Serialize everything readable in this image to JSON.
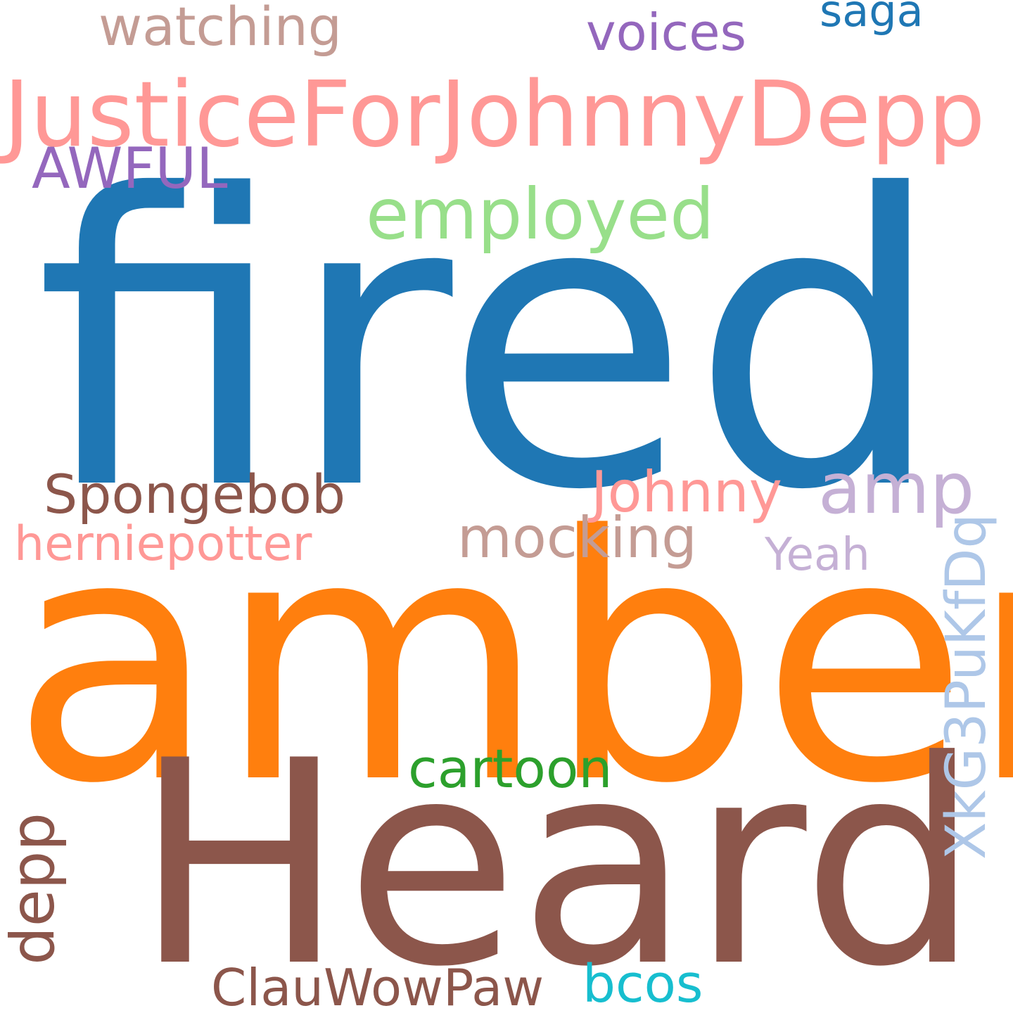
{
  "words": [
    {
      "text": "fired",
      "color": "#1f77b4"
    },
    {
      "text": "amber",
      "color": "#ff7f0e"
    },
    {
      "text": "Heard",
      "color": "#8c564b"
    },
    {
      "text": "JusticeForJohnnyDepp",
      "color": "#ff9896"
    },
    {
      "text": "employed",
      "color": "#98df8a"
    },
    {
      "text": "AWFUL",
      "color": "#9467bd"
    },
    {
      "text": "watching",
      "color": "#c49c94"
    },
    {
      "text": "voices",
      "color": "#9467bd"
    },
    {
      "text": "saga",
      "color": "#1f77b4"
    },
    {
      "text": "Spongebob",
      "color": "#8c564b"
    },
    {
      "text": "Johnny",
      "color": "#ff9896"
    },
    {
      "text": "amp",
      "color": "#c5b0d5"
    },
    {
      "text": "herniepotter",
      "color": "#ff9896"
    },
    {
      "text": "mocking",
      "color": "#c49c94"
    },
    {
      "text": "Yeah",
      "color": "#c5b0d5"
    },
    {
      "text": "cartoon",
      "color": "#2ca02c"
    },
    {
      "text": "depp",
      "color": "#8c564b"
    },
    {
      "text": "XkG3PuKfDq",
      "color": "#aec7e8"
    },
    {
      "text": "ClauWowPaw",
      "color": "#8c564b"
    },
    {
      "text": "bcos",
      "color": "#17becf"
    }
  ]
}
